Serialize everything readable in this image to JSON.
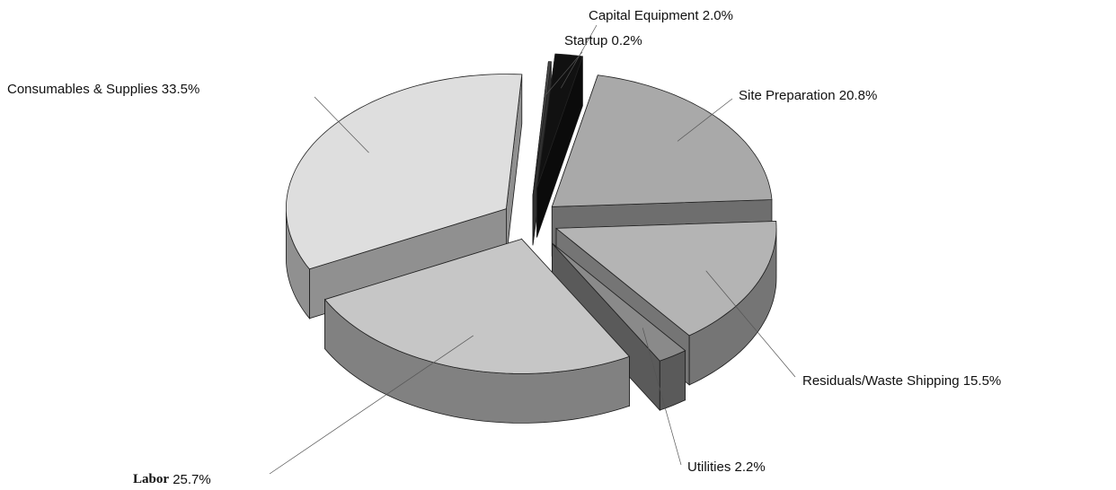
{
  "chart_data": {
    "type": "pie",
    "categories": [
      "Site Preparation",
      "Residuals/Waste Shipping",
      "Utilities",
      "Labor",
      "Consumables & Supplies",
      "Startup",
      "Capital Equipment"
    ],
    "values": [
      20.8,
      15.5,
      2.2,
      25.7,
      33.5,
      0.2,
      2.0
    ],
    "value_labels": [
      "20.8%",
      "15.5%",
      "2.2%",
      "25.7%",
      "33.5%",
      "0.2%",
      "2.0%"
    ],
    "colors": [
      "#a9a9a9",
      "#b4b4b4",
      "#8a8a8a",
      "#c6c6c6",
      "#dedede",
      "#4a4a4a",
      "#111111"
    ]
  }
}
